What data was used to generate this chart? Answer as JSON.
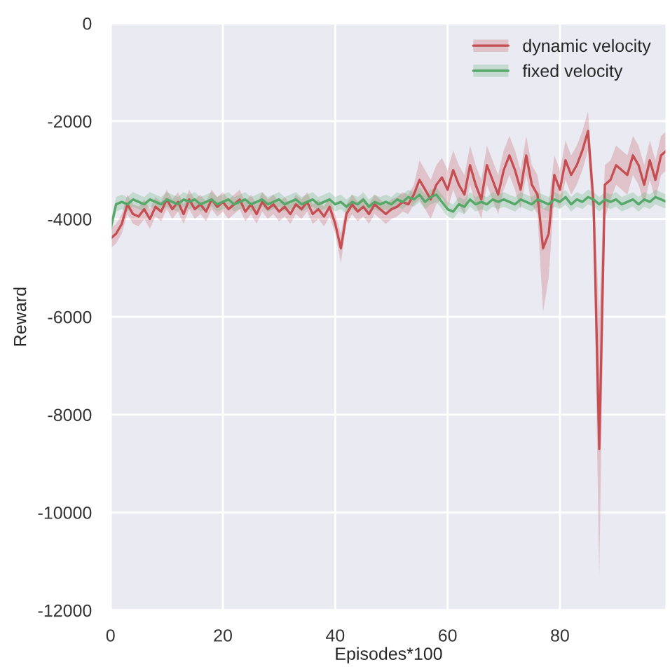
{
  "chart_data": {
    "type": "line",
    "xlabel": "Episodes*100",
    "ylabel": "Reward",
    "x": [
      0,
      1,
      2,
      3,
      4,
      5,
      6,
      7,
      8,
      9,
      10,
      11,
      12,
      13,
      14,
      15,
      16,
      17,
      18,
      19,
      20,
      21,
      22,
      23,
      24,
      25,
      26,
      27,
      28,
      29,
      30,
      31,
      32,
      33,
      34,
      35,
      36,
      37,
      38,
      39,
      40,
      41,
      42,
      43,
      44,
      45,
      46,
      47,
      48,
      49,
      50,
      51,
      52,
      53,
      54,
      55,
      56,
      57,
      58,
      59,
      60,
      61,
      62,
      63,
      64,
      65,
      66,
      67,
      68,
      69,
      70,
      71,
      72,
      73,
      74,
      75,
      76,
      77,
      78,
      79,
      80,
      81,
      82,
      83,
      84,
      85,
      86,
      87,
      88,
      89,
      90,
      91,
      92,
      93,
      94,
      95,
      96,
      97,
      98,
      99
    ],
    "series": [
      {
        "name": "dynamic velocity",
        "color": "#c44e52",
        "values": [
          -4400,
          -4300,
          -4100,
          -3700,
          -3900,
          -3950,
          -3800,
          -4000,
          -3750,
          -3850,
          -3600,
          -3800,
          -3650,
          -3900,
          -3600,
          -3800,
          -3700,
          -3850,
          -3600,
          -3750,
          -3650,
          -3800,
          -3700,
          -3600,
          -3850,
          -3700,
          -3900,
          -3650,
          -3800,
          -3700,
          -3850,
          -3750,
          -3900,
          -3700,
          -3800,
          -3650,
          -3900,
          -3800,
          -3950,
          -3750,
          -4100,
          -4600,
          -3900,
          -3700,
          -3850,
          -3750,
          -3900,
          -3700,
          -3800,
          -3900,
          -3800,
          -3750,
          -3650,
          -3700,
          -3500,
          -3200,
          -3400,
          -3600,
          -3300,
          -3150,
          -3400,
          -3000,
          -3300,
          -3500,
          -2900,
          -3300,
          -3600,
          -2900,
          -3200,
          -3500,
          -3000,
          -2700,
          -3000,
          -3400,
          -2700,
          -3300,
          -3500,
          -4600,
          -4300,
          -3100,
          -3400,
          -2800,
          -3100,
          -2900,
          -2600,
          -2200,
          -3700,
          -8700,
          -3300,
          -3200,
          -2900,
          -3000,
          -3100,
          -2700,
          -2900,
          -3300,
          -2800,
          -3200,
          -2700,
          -2600
        ],
        "lower": [
          -4600,
          -4500,
          -4300,
          -3900,
          -4100,
          -4150,
          -4000,
          -4200,
          -3950,
          -4050,
          -3800,
          -4000,
          -3850,
          -4100,
          -3800,
          -4000,
          -3900,
          -4050,
          -3800,
          -3950,
          -3850,
          -4000,
          -3900,
          -3800,
          -4050,
          -3900,
          -4100,
          -3850,
          -4000,
          -3900,
          -4050,
          -3950,
          -4100,
          -3900,
          -4000,
          -3850,
          -4100,
          -4000,
          -4150,
          -3950,
          -4300,
          -4900,
          -4100,
          -3900,
          -4050,
          -3950,
          -4100,
          -3900,
          -4000,
          -4100,
          -4000,
          -3950,
          -3850,
          -3900,
          -3700,
          -3600,
          -3800,
          -4000,
          -3700,
          -3550,
          -3800,
          -3400,
          -3700,
          -3900,
          -3300,
          -3700,
          -4000,
          -3300,
          -3600,
          -3900,
          -3400,
          -3100,
          -3400,
          -3800,
          -3100,
          -3700,
          -3900,
          -5900,
          -5200,
          -3500,
          -3800,
          -3200,
          -3500,
          -3300,
          -3000,
          -2600,
          -4300,
          -11300,
          -4000,
          -3600,
          -3300,
          -3400,
          -3500,
          -3100,
          -3300,
          -3700,
          -3200,
          -3600,
          -3100,
          -3000
        ],
        "upper": [
          -4200,
          -4100,
          -3900,
          -3500,
          -3700,
          -3750,
          -3600,
          -3800,
          -3550,
          -3650,
          -3400,
          -3600,
          -3450,
          -3700,
          -3400,
          -3600,
          -3500,
          -3650,
          -3400,
          -3550,
          -3450,
          -3600,
          -3500,
          -3400,
          -3650,
          -3500,
          -3700,
          -3450,
          -3600,
          -3500,
          -3650,
          -3550,
          -3700,
          -3500,
          -3600,
          -3450,
          -3700,
          -3600,
          -3750,
          -3550,
          -3900,
          -4300,
          -3700,
          -3500,
          -3650,
          -3550,
          -3700,
          -3500,
          -3600,
          -3700,
          -3600,
          -3550,
          -3450,
          -3500,
          -3300,
          -2800,
          -3000,
          -3200,
          -2900,
          -2750,
          -3000,
          -2600,
          -2900,
          -3100,
          -2500,
          -2900,
          -3200,
          -2500,
          -2800,
          -3100,
          -2600,
          -2300,
          -2600,
          -3000,
          -2300,
          -2900,
          -3100,
          -3800,
          -3700,
          -2700,
          -3000,
          -2400,
          -2700,
          -2500,
          -2200,
          -1800,
          -3300,
          -6000,
          -2900,
          -2800,
          -2500,
          -2600,
          -2700,
          -2300,
          -2500,
          -2900,
          -2400,
          -2800,
          -2300,
          -2200
        ]
      },
      {
        "name": "fixed velocity",
        "color": "#55a868",
        "values": [
          -4200,
          -3700,
          -3650,
          -3700,
          -3600,
          -3650,
          -3700,
          -3600,
          -3650,
          -3700,
          -3600,
          -3650,
          -3700,
          -3600,
          -3650,
          -3600,
          -3700,
          -3650,
          -3600,
          -3700,
          -3650,
          -3600,
          -3700,
          -3650,
          -3600,
          -3700,
          -3650,
          -3600,
          -3700,
          -3650,
          -3600,
          -3700,
          -3650,
          -3600,
          -3700,
          -3650,
          -3600,
          -3700,
          -3650,
          -3600,
          -3700,
          -3650,
          -3750,
          -3650,
          -3700,
          -3600,
          -3750,
          -3650,
          -3700,
          -3650,
          -3700,
          -3600,
          -3650,
          -3550,
          -3600,
          -3500,
          -3650,
          -3550,
          -3500,
          -3650,
          -3800,
          -3850,
          -3700,
          -3750,
          -3600,
          -3700,
          -3650,
          -3700,
          -3600,
          -3650,
          -3600,
          -3650,
          -3700,
          -3600,
          -3650,
          -3700,
          -3600,
          -3650,
          -3700,
          -3600,
          -3650,
          -3550,
          -3700,
          -3600,
          -3650,
          -3550,
          -3600,
          -3700,
          -3600,
          -3650,
          -3600,
          -3700,
          -3650,
          -3600,
          -3700,
          -3600,
          -3650,
          -3550,
          -3600,
          -3650
        ],
        "lower": [
          -4350,
          -3850,
          -3800,
          -3850,
          -3750,
          -3800,
          -3850,
          -3750,
          -3800,
          -3850,
          -3750,
          -3800,
          -3850,
          -3750,
          -3800,
          -3750,
          -3850,
          -3800,
          -3750,
          -3850,
          -3800,
          -3750,
          -3850,
          -3800,
          -3750,
          -3850,
          -3800,
          -3750,
          -3850,
          -3800,
          -3750,
          -3850,
          -3800,
          -3750,
          -3850,
          -3800,
          -3750,
          -3850,
          -3800,
          -3750,
          -3850,
          -3800,
          -3900,
          -3800,
          -3850,
          -3750,
          -3900,
          -3800,
          -3850,
          -3800,
          -3850,
          -3750,
          -3800,
          -3700,
          -3750,
          -3650,
          -3800,
          -3700,
          -3650,
          -3800,
          -3950,
          -4000,
          -3850,
          -3900,
          -3750,
          -3850,
          -3800,
          -3850,
          -3750,
          -3800,
          -3750,
          -3800,
          -3850,
          -3750,
          -3800,
          -3850,
          -3750,
          -3800,
          -3850,
          -3750,
          -3800,
          -3700,
          -3850,
          -3750,
          -3800,
          -3700,
          -3750,
          -3850,
          -3750,
          -3800,
          -3750,
          -3850,
          -3800,
          -3750,
          -3850,
          -3750,
          -3800,
          -3700,
          -3750,
          -3800
        ],
        "upper": [
          -4050,
          -3550,
          -3500,
          -3550,
          -3450,
          -3500,
          -3550,
          -3450,
          -3500,
          -3550,
          -3450,
          -3500,
          -3550,
          -3450,
          -3500,
          -3450,
          -3550,
          -3500,
          -3450,
          -3550,
          -3500,
          -3450,
          -3550,
          -3500,
          -3450,
          -3550,
          -3500,
          -3450,
          -3550,
          -3500,
          -3450,
          -3550,
          -3500,
          -3450,
          -3550,
          -3500,
          -3450,
          -3550,
          -3500,
          -3450,
          -3550,
          -3500,
          -3600,
          -3500,
          -3550,
          -3450,
          -3600,
          -3500,
          -3550,
          -3500,
          -3550,
          -3450,
          -3500,
          -3400,
          -3450,
          -3350,
          -3500,
          -3400,
          -3350,
          -3500,
          -3650,
          -3700,
          -3550,
          -3600,
          -3450,
          -3550,
          -3500,
          -3550,
          -3450,
          -3500,
          -3450,
          -3500,
          -3550,
          -3450,
          -3500,
          -3550,
          -3450,
          -3500,
          -3550,
          -3450,
          -3500,
          -3400,
          -3550,
          -3450,
          -3500,
          -3400,
          -3450,
          -3550,
          -3450,
          -3500,
          -3450,
          -3550,
          -3500,
          -3450,
          -3550,
          -3450,
          -3500,
          -3400,
          -3450,
          -3500
        ]
      }
    ],
    "xlim": [
      0,
      99
    ],
    "xticks": [
      0,
      20,
      40,
      60,
      80
    ],
    "ylim": [
      -12000,
      0
    ],
    "yticks": [
      -12000,
      -10000,
      -8000,
      -6000,
      -4000,
      -2000,
      0
    ],
    "grid": true,
    "legend": "top right",
    "marker": "none",
    "line_style": "solid"
  }
}
